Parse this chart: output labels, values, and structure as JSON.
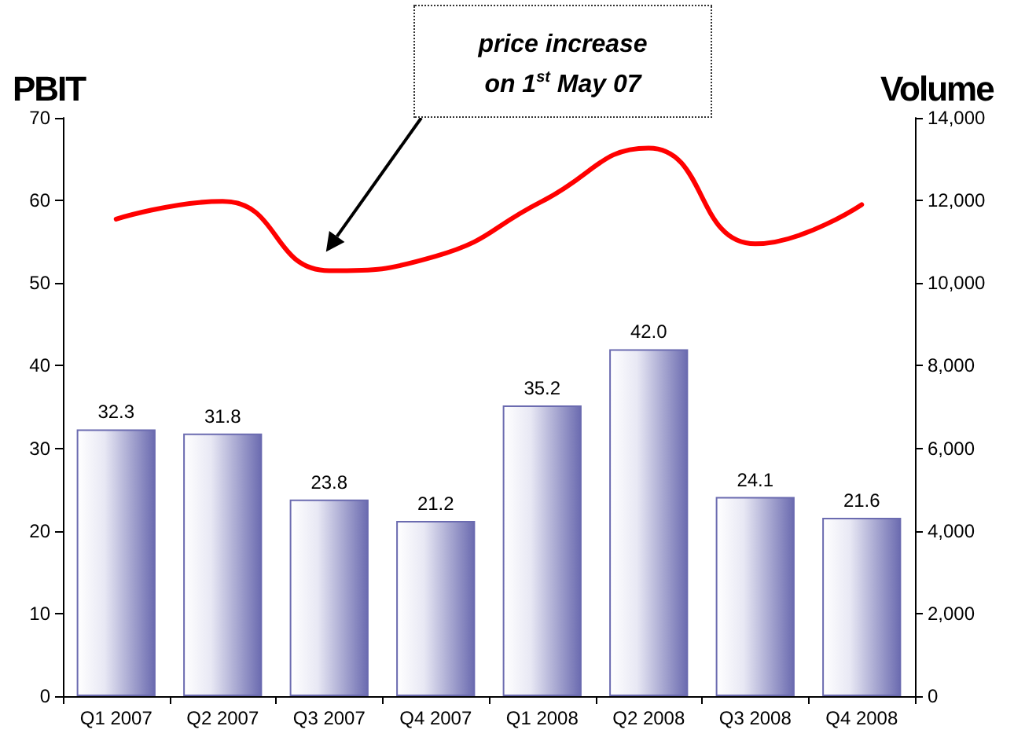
{
  "chart_data": {
    "type": "bar",
    "ylabel": "PBIT",
    "y2label": "Volume",
    "categories": [
      "Q1 2007",
      "Q2 2007",
      "Q3 2007",
      "Q4 2007",
      "Q1 2008",
      "Q2 2008",
      "Q3 2008",
      "Q4 2008"
    ],
    "series": [
      {
        "color": "#6b6bb0",
        "values": [
          32.3,
          31.8,
          23.8,
          21.2,
          35.2,
          42.0,
          24.1,
          21.6
        ],
        "value_labels": [
          "32.3",
          "31.8",
          "23.8",
          "21.2",
          "35.2",
          "42.0",
          "24.1",
          "21.6"
        ]
      },
      {
        "type": "line",
        "axis": "y2",
        "color": "#ff0000",
        "values": [
          11550,
          11980,
          10300,
          10650,
          11980,
          13270,
          10950,
          11900
        ]
      }
    ],
    "grid": false,
    "marker": "none",
    "ylim": [
      0,
      70
    ],
    "yticks": [
      0,
      10,
      20,
      30,
      40,
      50,
      60,
      70
    ],
    "y2lim": [
      0,
      14000
    ],
    "y2ticks": [
      0,
      {
        "value": 2000,
        "label": "2,000"
      },
      {
        "value": 4000,
        "label": "4,000"
      },
      {
        "value": 6000,
        "label": "6,000"
      },
      {
        "value": 8000,
        "label": "8,000"
      },
      {
        "value": 10000,
        "label": "10,000"
      },
      {
        "value": 12000,
        "label": "12,000"
      },
      {
        "value": 14000,
        "label": "14,000"
      }
    ],
    "annotations": [
      "price increase on 1$^{st}$ May 07"
    ]
  }
}
